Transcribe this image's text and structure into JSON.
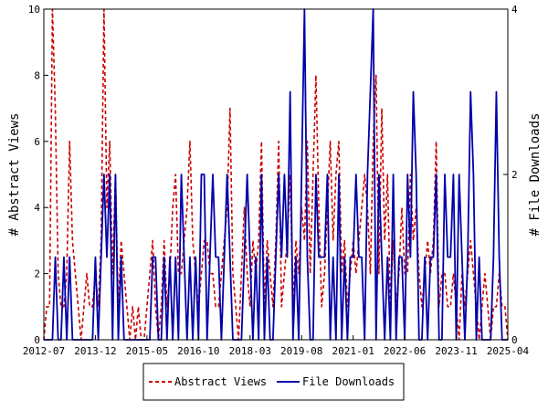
{
  "chart_data": {
    "type": "line",
    "x_tick_labels": [
      "2012-07",
      "2013-12",
      "2015-05",
      "2016-10",
      "2018-03",
      "2019-08",
      "2021-01",
      "2022-06",
      "2023-11",
      "2025-04"
    ],
    "ylabel_left": "# Abstract Views",
    "ylabel_right": "# File Downloads",
    "ylim_left": [
      0,
      10
    ],
    "ylim_right": [
      0,
      4
    ],
    "yticks_left": [
      "0",
      "2",
      "4",
      "6",
      "8",
      "10"
    ],
    "yticks_right": [
      "0",
      "2",
      "4"
    ],
    "legend_position": "bottom-center",
    "grid": false,
    "colors": {
      "abstract_views": "#cc0000",
      "file_downloads": "#0000aa"
    },
    "series": [
      {
        "name": "Abstract Views",
        "axis": "left",
        "style": "dashed",
        "x_start": "2012-07",
        "values": [
          0,
          1,
          1,
          10,
          7,
          2,
          1,
          1,
          2,
          6,
          3,
          2,
          1,
          0,
          1,
          2,
          1,
          1,
          2,
          1,
          3,
          10,
          4,
          6,
          2,
          5,
          1,
          3,
          2,
          1,
          0,
          1,
          0,
          1,
          0,
          0,
          1,
          2,
          3,
          1,
          0,
          1,
          3,
          1,
          2,
          4,
          5,
          2,
          2,
          3,
          4,
          6,
          3,
          2,
          1,
          2,
          3,
          3,
          2,
          2,
          1,
          1,
          2,
          3,
          4,
          7,
          2,
          1,
          0,
          2,
          4,
          2,
          1,
          3,
          2,
          3,
          6,
          1,
          3,
          2,
          1,
          3,
          6,
          1,
          2,
          3,
          5,
          1,
          3,
          2,
          4,
          3,
          6,
          2,
          5,
          8,
          4,
          1,
          2,
          4,
          6,
          3,
          5,
          6,
          2,
          3,
          1,
          2,
          3,
          2,
          3,
          4,
          5,
          4,
          2,
          6,
          8,
          2,
          7,
          3,
          5,
          1,
          3,
          1,
          2,
          4,
          2,
          2,
          5,
          3,
          4,
          2,
          1,
          2,
          3,
          2,
          3,
          6,
          1,
          2,
          2,
          1,
          1,
          2,
          1,
          0,
          2,
          1,
          2,
          3,
          2,
          1,
          0,
          1,
          2,
          1,
          0,
          1,
          1,
          2,
          1,
          1,
          0
        ]
      },
      {
        "name": "File Downloads",
        "axis": "right",
        "style": "solid",
        "x_start": "2012-07",
        "values": [
          0,
          0,
          0,
          0,
          1,
          0,
          0,
          1,
          0,
          1,
          0,
          0,
          0,
          0,
          0,
          0,
          0,
          0,
          1,
          0,
          1,
          2,
          1,
          2,
          0,
          2,
          0,
          1,
          0,
          0,
          0,
          0,
          0,
          0,
          0,
          0,
          0,
          0,
          1,
          1,
          0,
          0,
          1,
          0,
          1,
          0,
          1,
          0,
          2,
          1,
          0,
          1,
          0,
          1,
          0,
          2,
          2,
          0,
          1,
          2,
          1,
          1,
          0,
          1,
          2,
          1,
          0,
          0,
          0,
          0,
          1,
          2,
          1,
          0,
          1,
          0,
          2,
          0,
          1,
          0,
          0,
          1,
          2,
          1,
          2,
          1,
          3,
          0,
          1,
          0,
          2,
          4,
          1,
          0,
          0,
          2,
          1,
          1,
          1,
          2,
          0,
          1,
          0,
          2,
          0,
          1,
          0,
          1,
          1,
          2,
          1,
          1,
          0,
          2,
          3,
          4,
          0,
          2,
          1,
          0,
          1,
          0,
          2,
          0,
          1,
          1,
          0,
          2,
          1,
          3,
          2,
          0,
          0,
          1,
          0,
          1,
          1,
          2,
          0,
          0,
          2,
          1,
          1,
          2,
          0,
          2,
          1,
          0,
          1,
          3,
          2,
          0,
          1,
          0,
          0,
          0,
          0,
          1,
          3,
          1,
          0,
          0,
          0
        ]
      }
    ]
  }
}
